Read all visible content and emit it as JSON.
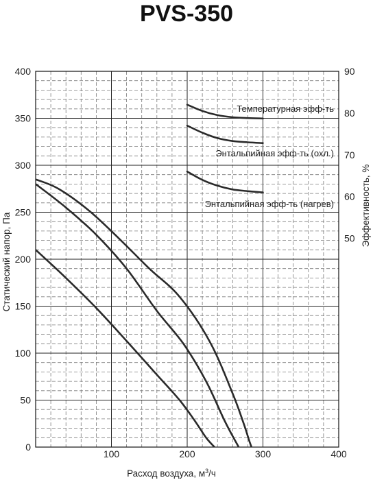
{
  "chart_data": {
    "type": "line",
    "title": "PVS-350",
    "xlabel": "Расход воздуха, м",
    "xlabel_sup": "3",
    "xlabel_suffix": "/ч",
    "ylabel": "Статический напор, Па",
    "y2label": "Эффективность, %",
    "xlim": [
      0,
      400
    ],
    "ylim": [
      0,
      400
    ],
    "y2lim": [
      0,
      90
    ],
    "x_ticks": [
      0,
      100,
      200,
      300,
      400
    ],
    "x_tick_labels": [
      "0",
      "100",
      "200",
      "300",
      "400"
    ],
    "y_ticks": [
      0,
      50,
      100,
      150,
      200,
      250,
      300,
      350,
      400
    ],
    "y_tick_labels": [
      "0",
      "50",
      "100",
      "150",
      "200",
      "250",
      "300",
      "350",
      "400"
    ],
    "y2_ticks": [
      50,
      60,
      70,
      80,
      90
    ],
    "y2_tick_labels": [
      "50",
      "60",
      "70",
      "80",
      "90"
    ],
    "grid": true,
    "series": [
      {
        "axis": "left",
        "x": [
          0,
          30,
          70,
          110,
          150,
          190,
          230,
          260,
          275,
          285,
          293
        ],
        "y": [
          285,
          275,
          252,
          222,
          190,
          160,
          112,
          57,
          24,
          0,
          -8
        ]
      },
      {
        "axis": "left",
        "x": [
          0,
          40,
          80,
          120,
          160,
          195,
          225,
          250,
          268
        ],
        "y": [
          280,
          255,
          226,
          190,
          145,
          110,
          70,
          27,
          0
        ]
      },
      {
        "axis": "left",
        "x": [
          0,
          40,
          80,
          120,
          160,
          190,
          210,
          225,
          236
        ],
        "y": [
          210,
          180,
          148,
          113,
          77,
          50,
          28,
          10,
          0
        ]
      },
      {
        "name": "Температурная эфф-ть",
        "axis": "right",
        "x": [
          200,
          220,
          240,
          260,
          280,
          300
        ],
        "y": [
          82,
          80.5,
          79.5,
          79,
          78.8,
          78.7
        ]
      },
      {
        "name": "Энтальпийная эфф-ть (охл.)",
        "axis": "right",
        "x": [
          200,
          220,
          240,
          260,
          280,
          300
        ],
        "y": [
          77,
          75.3,
          74,
          73.3,
          73,
          72.8
        ]
      },
      {
        "name": "Энтальпийная эфф-ть (нагрев)",
        "axis": "right",
        "x": [
          200,
          220,
          240,
          260,
          280,
          300
        ],
        "y": [
          66,
          64,
          62.6,
          61.7,
          61.3,
          61
        ]
      }
    ]
  }
}
